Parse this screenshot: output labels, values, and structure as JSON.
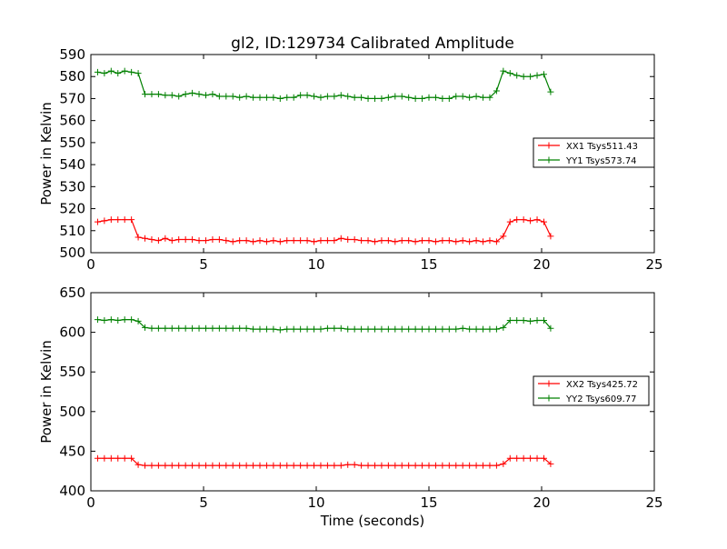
{
  "title": "gl2, ID:129734 Calibrated Amplitude",
  "colors": {
    "red": "#ff0000",
    "green": "#008000"
  },
  "chart_data": [
    {
      "type": "line",
      "xlabel": "",
      "ylabel": "Power in Kelvin",
      "xlim": [
        0,
        25
      ],
      "ylim": [
        500,
        590
      ],
      "xticks": [
        0,
        5,
        10,
        15,
        20,
        25
      ],
      "yticks": [
        500,
        510,
        520,
        530,
        540,
        550,
        560,
        570,
        580,
        590
      ],
      "legend_position": "center-right",
      "grid": false,
      "series": [
        {
          "name": "XX1 Tsys511.43",
          "color": "red",
          "marker": "+",
          "x": [
            0.3,
            0.6,
            0.9,
            1.2,
            1.5,
            1.8,
            2.1,
            2.4,
            2.7,
            3.0,
            3.3,
            3.6,
            3.9,
            4.2,
            4.5,
            4.8,
            5.1,
            5.4,
            5.7,
            6.0,
            6.3,
            6.6,
            6.9,
            7.2,
            7.5,
            7.8,
            8.1,
            8.4,
            8.7,
            9.0,
            9.3,
            9.6,
            9.9,
            10.2,
            10.5,
            10.8,
            11.1,
            11.4,
            11.7,
            12.0,
            12.3,
            12.6,
            12.9,
            13.2,
            13.5,
            13.8,
            14.1,
            14.4,
            14.7,
            15.0,
            15.3,
            15.6,
            15.9,
            16.2,
            16.5,
            16.8,
            17.1,
            17.4,
            17.7,
            18.0,
            18.3,
            18.6,
            18.9,
            19.2,
            19.5,
            19.8,
            20.1,
            20.4
          ],
          "y": [
            514,
            514.5,
            515,
            515,
            515,
            515,
            507,
            506.5,
            506,
            505.5,
            506.5,
            505.5,
            506,
            506,
            506,
            505.5,
            505.5,
            506,
            506,
            505.5,
            505,
            505.5,
            505.5,
            505,
            505.5,
            505,
            505.5,
            505,
            505.5,
            505.5,
            505.5,
            505.5,
            505,
            505.5,
            505.5,
            505.5,
            506.5,
            506,
            506,
            505.5,
            505.5,
            505,
            505.5,
            505.5,
            505,
            505.5,
            505.5,
            505,
            505.5,
            505.5,
            505,
            505.5,
            505.5,
            505,
            505.5,
            505,
            505.5,
            505,
            505.5,
            505,
            507.5,
            514,
            515,
            515,
            514.5,
            515,
            514,
            507.5
          ]
        },
        {
          "name": "YY1 Tsys573.74",
          "color": "green",
          "marker": "+",
          "x": [
            0.3,
            0.6,
            0.9,
            1.2,
            1.5,
            1.8,
            2.1,
            2.4,
            2.7,
            3.0,
            3.3,
            3.6,
            3.9,
            4.2,
            4.5,
            4.8,
            5.1,
            5.4,
            5.7,
            6.0,
            6.3,
            6.6,
            6.9,
            7.2,
            7.5,
            7.8,
            8.1,
            8.4,
            8.7,
            9.0,
            9.3,
            9.6,
            9.9,
            10.2,
            10.5,
            10.8,
            11.1,
            11.4,
            11.7,
            12.0,
            12.3,
            12.6,
            12.9,
            13.2,
            13.5,
            13.8,
            14.1,
            14.4,
            14.7,
            15.0,
            15.3,
            15.6,
            15.9,
            16.2,
            16.5,
            16.8,
            17.1,
            17.4,
            17.7,
            18.0,
            18.3,
            18.6,
            18.9,
            19.2,
            19.5,
            19.8,
            20.1,
            20.4
          ],
          "y": [
            582,
            581.5,
            582.5,
            581.5,
            582.5,
            582,
            581.5,
            572,
            572,
            572,
            571.5,
            571.5,
            571,
            572,
            572.5,
            572,
            571.5,
            572,
            571,
            571,
            571,
            570.5,
            571,
            570.5,
            570.5,
            570.5,
            570.5,
            570,
            570.5,
            570.5,
            571.5,
            571.5,
            571,
            570.5,
            571,
            571,
            571.5,
            571,
            570.5,
            570.5,
            570,
            570,
            570,
            570.5,
            571,
            571,
            570.5,
            570,
            570,
            570.5,
            570.5,
            570,
            570,
            571,
            571,
            570.5,
            571,
            570.5,
            570.5,
            573.5,
            582.5,
            581.5,
            580.5,
            580,
            580,
            580.5,
            581,
            573
          ]
        }
      ]
    },
    {
      "type": "line",
      "xlabel": "Time (seconds)",
      "ylabel": "Power in Kelvin",
      "xlim": [
        0,
        25
      ],
      "ylim": [
        400,
        650
      ],
      "xticks": [
        0,
        5,
        10,
        15,
        20,
        25
      ],
      "yticks": [
        400,
        450,
        500,
        550,
        600,
        650
      ],
      "legend_position": "center-right",
      "grid": false,
      "series": [
        {
          "name": "XX2 Tsys425.72",
          "color": "red",
          "marker": "+",
          "x": [
            0.3,
            0.6,
            0.9,
            1.2,
            1.5,
            1.8,
            2.1,
            2.4,
            2.7,
            3.0,
            3.3,
            3.6,
            3.9,
            4.2,
            4.5,
            4.8,
            5.1,
            5.4,
            5.7,
            6.0,
            6.3,
            6.6,
            6.9,
            7.2,
            7.5,
            7.8,
            8.1,
            8.4,
            8.7,
            9.0,
            9.3,
            9.6,
            9.9,
            10.2,
            10.5,
            10.8,
            11.1,
            11.4,
            11.7,
            12.0,
            12.3,
            12.6,
            12.9,
            13.2,
            13.5,
            13.8,
            14.1,
            14.4,
            14.7,
            15.0,
            15.3,
            15.6,
            15.9,
            16.2,
            16.5,
            16.8,
            17.1,
            17.4,
            17.7,
            18.0,
            18.3,
            18.6,
            18.9,
            19.2,
            19.5,
            19.8,
            20.1,
            20.4
          ],
          "y": [
            441,
            441,
            441,
            441,
            441,
            441,
            433,
            432,
            432,
            432,
            432,
            432,
            432,
            432,
            432,
            432,
            432,
            432,
            432,
            432,
            432,
            432,
            432,
            432,
            432,
            432,
            432,
            432,
            432,
            432,
            432,
            432,
            432,
            432,
            432,
            432,
            432,
            433,
            433,
            432,
            432,
            432,
            432,
            432,
            432,
            432,
            432,
            432,
            432,
            432,
            432,
            432,
            432,
            432,
            432,
            432,
            432,
            432,
            432,
            432,
            434,
            441,
            441,
            441,
            441,
            441,
            441,
            434
          ]
        },
        {
          "name": "YY2 Tsys609.77",
          "color": "green",
          "marker": "+",
          "x": [
            0.3,
            0.6,
            0.9,
            1.2,
            1.5,
            1.8,
            2.1,
            2.4,
            2.7,
            3.0,
            3.3,
            3.6,
            3.9,
            4.2,
            4.5,
            4.8,
            5.1,
            5.4,
            5.7,
            6.0,
            6.3,
            6.6,
            6.9,
            7.2,
            7.5,
            7.8,
            8.1,
            8.4,
            8.7,
            9.0,
            9.3,
            9.6,
            9.9,
            10.2,
            10.5,
            10.8,
            11.1,
            11.4,
            11.7,
            12.0,
            12.3,
            12.6,
            12.9,
            13.2,
            13.5,
            13.8,
            14.1,
            14.4,
            14.7,
            15.0,
            15.3,
            15.6,
            15.9,
            16.2,
            16.5,
            16.8,
            17.1,
            17.4,
            17.7,
            18.0,
            18.3,
            18.6,
            18.9,
            19.2,
            19.5,
            19.8,
            20.1,
            20.4
          ],
          "y": [
            616,
            615,
            616,
            615,
            616,
            616,
            614,
            606,
            605,
            605,
            605,
            605,
            605,
            605,
            605,
            605,
            605,
            605,
            605,
            605,
            605,
            605,
            605,
            604,
            604,
            604,
            604,
            603,
            604,
            604,
            604,
            604,
            604,
            604,
            605,
            605,
            605,
            604,
            604,
            604,
            604,
            604,
            604,
            604,
            604,
            604,
            604,
            604,
            604,
            604,
            604,
            604,
            604,
            604,
            605,
            604,
            604,
            604,
            604,
            604,
            606,
            615,
            615,
            615,
            614,
            615,
            615,
            605
          ]
        }
      ]
    }
  ]
}
